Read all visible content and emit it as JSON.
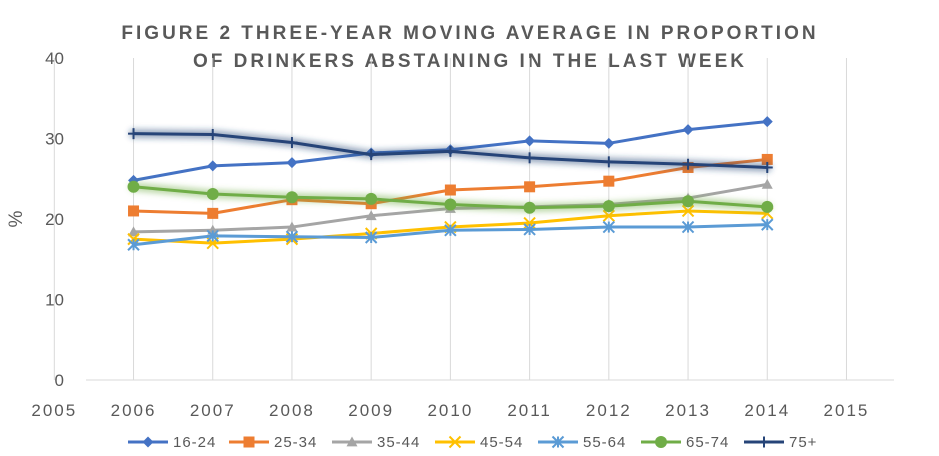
{
  "chart_data": {
    "type": "line",
    "title_lines": [
      "FIGURE 2 THREE-YEAR MOVING AVERAGE IN PROPORTION",
      "OF DRINKERS ABSTAINING IN THE LAST WEEK"
    ],
    "xlabel": "",
    "ylabel": "%",
    "x_ticks": [
      "2005",
      "2006",
      "2007",
      "2008",
      "2009",
      "2010",
      "2011",
      "2012",
      "2013",
      "2014",
      "2015"
    ],
    "y_ticks": [
      "0",
      "10",
      "20",
      "30",
      "40"
    ],
    "xlim": [
      2005.4,
      2015.6
    ],
    "ylim": [
      0,
      40
    ],
    "grid": "vertical",
    "legend_position": "bottom",
    "series": [
      {
        "name": "16-24",
        "color": "#4472C4",
        "marker": "diamond",
        "glow": false,
        "x": [
          2006,
          2007,
          2008,
          2009,
          2010,
          2011,
          2012,
          2013,
          2014
        ],
        "values": [
          24.8,
          26.6,
          27.0,
          28.2,
          28.6,
          29.7,
          29.4,
          31.1,
          32.1
        ]
      },
      {
        "name": "25-34",
        "color": "#ED7D31",
        "marker": "square",
        "glow": false,
        "x": [
          2006,
          2007,
          2008,
          2009,
          2010,
          2011,
          2012,
          2013,
          2014
        ],
        "values": [
          21.0,
          20.7,
          22.4,
          21.9,
          23.6,
          24.0,
          24.7,
          26.4,
          27.4
        ]
      },
      {
        "name": "35-44",
        "color": "#A5A5A5",
        "marker": "triangle",
        "glow": false,
        "x": [
          2006,
          2007,
          2008,
          2009,
          2010,
          2011,
          2012,
          2013,
          2014
        ],
        "values": [
          18.4,
          18.6,
          19.0,
          20.4,
          21.3,
          21.5,
          21.8,
          22.6,
          24.3
        ]
      },
      {
        "name": "45-54",
        "color": "#FFC000",
        "marker": "x",
        "glow": false,
        "x": [
          2006,
          2007,
          2008,
          2009,
          2010,
          2011,
          2012,
          2013,
          2014
        ],
        "values": [
          17.5,
          17.0,
          17.5,
          18.2,
          19.0,
          19.5,
          20.4,
          21.0,
          20.7
        ]
      },
      {
        "name": "55-64",
        "color": "#5B9BD5",
        "marker": "asterisk",
        "glow": false,
        "x": [
          2006,
          2007,
          2008,
          2009,
          2010,
          2011,
          2012,
          2013,
          2014
        ],
        "values": [
          16.8,
          17.9,
          17.8,
          17.7,
          18.6,
          18.7,
          19.0,
          19.0,
          19.3
        ]
      },
      {
        "name": "65-74",
        "color": "#70AD47",
        "marker": "circle",
        "glow": true,
        "x": [
          2006,
          2007,
          2008,
          2009,
          2010,
          2011,
          2012,
          2013,
          2014
        ],
        "values": [
          24.0,
          23.1,
          22.7,
          22.5,
          21.8,
          21.4,
          21.6,
          22.2,
          21.5
        ]
      },
      {
        "name": "75+",
        "color": "#264478",
        "marker": "plus",
        "glow": true,
        "x": [
          2006,
          2007,
          2008,
          2009,
          2010,
          2011,
          2012,
          2013,
          2014
        ],
        "values": [
          30.6,
          30.5,
          29.5,
          28.0,
          28.4,
          27.6,
          27.1,
          26.8,
          26.4
        ]
      }
    ]
  }
}
